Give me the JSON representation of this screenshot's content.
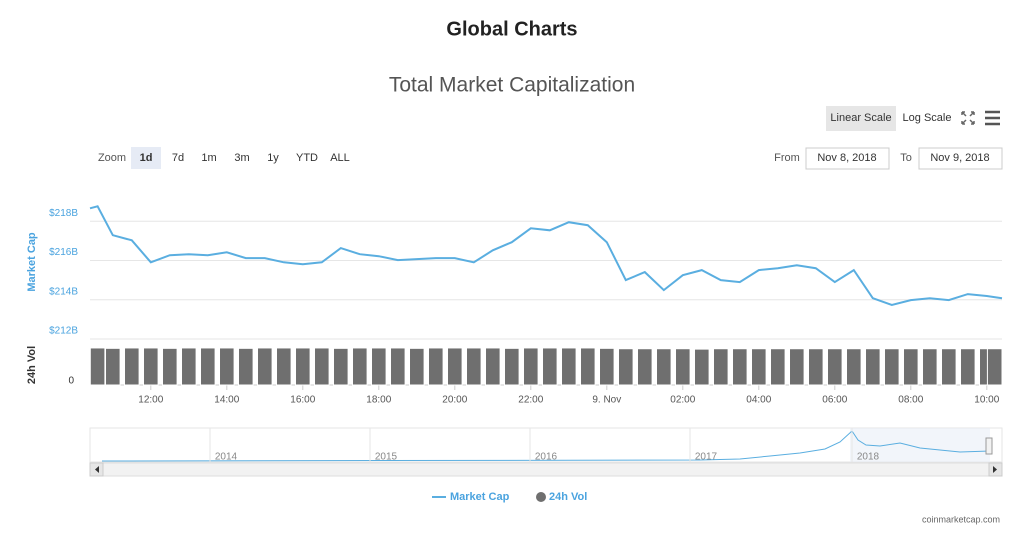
{
  "header": {
    "title": "Global Charts"
  },
  "controls": {
    "scale_buttons": [
      "Linear Scale",
      "Log Scale"
    ],
    "zoom_label": "Zoom",
    "zoom_buttons": [
      "1d",
      "7d",
      "1m",
      "3m",
      "1y",
      "YTD",
      "ALL"
    ],
    "from_label": "From",
    "from_date": "Nov 8, 2018",
    "to_label": "To",
    "to_date": "Nov 9, 2018"
  },
  "chart_data": {
    "type": "line",
    "title": "Total Market Capitalization",
    "ylabel": "Market Cap",
    "y2label": "24h Vol",
    "x": [
      10.4,
      10.6,
      11,
      11.5,
      12,
      12.5,
      13,
      13.5,
      14,
      14.5,
      15,
      15.5,
      16,
      16.5,
      17,
      17.5,
      18,
      18.5,
      19,
      19.5,
      20,
      20.5,
      21,
      21.5,
      22,
      22.5,
      23,
      23.5,
      24,
      24.5,
      25,
      25.5,
      26,
      26.5,
      27,
      27.5,
      28,
      28.5,
      29,
      29.5,
      30,
      30.5,
      31,
      31.5,
      32,
      32.5,
      33,
      33.5,
      34,
      34.4
    ],
    "series": [
      {
        "name": "Market Cap",
        "color": "#5aaee0",
        "values": [
          218.66,
          218.76,
          217.29,
          217.03,
          215.91,
          216.27,
          216.32,
          216.27,
          216.42,
          216.12,
          216.12,
          215.91,
          215.81,
          215.91,
          216.63,
          216.32,
          216.22,
          216.02,
          216.07,
          216.12,
          216.12,
          215.91,
          216.52,
          216.93,
          217.64,
          217.54,
          217.95,
          217.8,
          216.93,
          215.0,
          215.41,
          214.49,
          215.25,
          215.51,
          215.0,
          214.9,
          215.51,
          215.61,
          215.76,
          215.61,
          214.9,
          215.51,
          214.08,
          213.73,
          213.98,
          214.08,
          213.98,
          214.29,
          214.19,
          214.08
        ]
      },
      {
        "name": "24h Vol",
        "color": "#6f6f6f",
        "type": "bar",
        "axis": "y2",
        "values": [
          9.5,
          9.5,
          9.4,
          9.5,
          9.5,
          9.4,
          9.5,
          9.5,
          9.5,
          9.4,
          9.5,
          9.5,
          9.5,
          9.5,
          9.4,
          9.5,
          9.5,
          9.5,
          9.4,
          9.5,
          9.5,
          9.5,
          9.5,
          9.4,
          9.5,
          9.5,
          9.5,
          9.5,
          9.4,
          9.3,
          9.3,
          9.3,
          9.3,
          9.2,
          9.3,
          9.3,
          9.3,
          9.3,
          9.3,
          9.3,
          9.3,
          9.3,
          9.3,
          9.3,
          9.3,
          9.3,
          9.3,
          9.3,
          9.3,
          9.3
        ]
      }
    ],
    "xlim": [
      10.4,
      34.4
    ],
    "xticks": [
      {
        "value": 12,
        "label": "12:00"
      },
      {
        "value": 14,
        "label": "14:00"
      },
      {
        "value": 16,
        "label": "16:00"
      },
      {
        "value": 18,
        "label": "18:00"
      },
      {
        "value": 20,
        "label": "20:00"
      },
      {
        "value": 22,
        "label": "22:00"
      },
      {
        "value": 24,
        "label": "9. Nov"
      },
      {
        "value": 26,
        "label": "02:00"
      },
      {
        "value": 28,
        "label": "04:00"
      },
      {
        "value": 30,
        "label": "06:00"
      },
      {
        "value": 32,
        "label": "08:00"
      },
      {
        "value": 34,
        "label": "10:00"
      }
    ],
    "ylim": [
      212,
      220
    ],
    "yticks": [
      {
        "value": 212,
        "label": "$212B"
      },
      {
        "value": 214,
        "label": "$214B"
      },
      {
        "value": 216,
        "label": "$216B"
      },
      {
        "value": 218,
        "label": "$218B"
      }
    ],
    "y2lim": [
      0,
      10
    ],
    "y2ticks": [
      0
    ],
    "grid": true
  },
  "navigator": {
    "labels": [
      "2014",
      "2015",
      "2016",
      "2017",
      "2018"
    ]
  },
  "credit": "coinmarketcap.com"
}
